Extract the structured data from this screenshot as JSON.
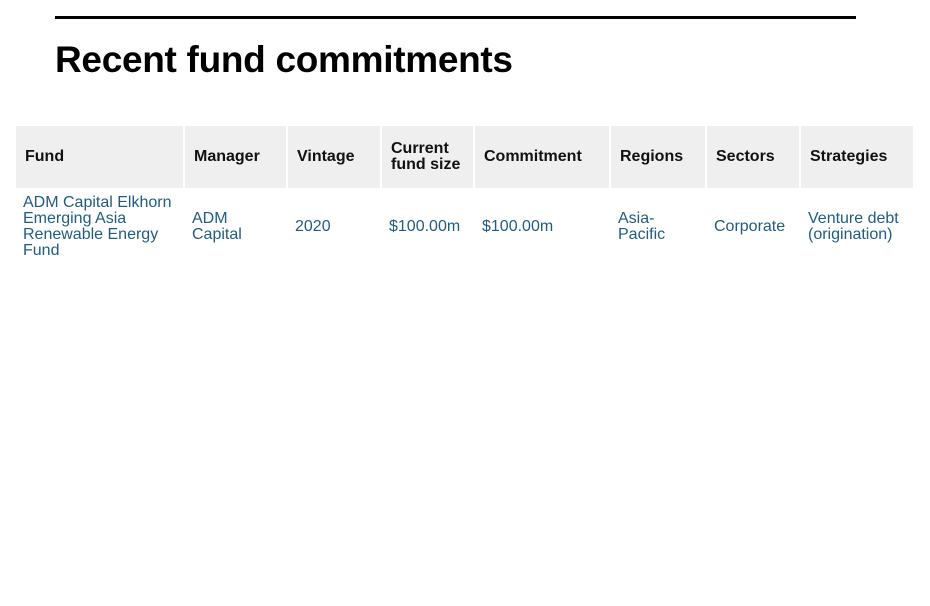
{
  "page": {
    "title": "Recent fund commitments"
  },
  "table": {
    "headers": {
      "fund": "Fund",
      "manager": "Manager",
      "vintage": "Vintage",
      "size": "Current fund size",
      "commitment": "Commitment",
      "regions": "Regions",
      "sectors": "Sectors",
      "strategies": "Strategies"
    },
    "rows": [
      {
        "fund": "ADM Capital Elkhorn Emerging Asia Renewable Energy Fund",
        "manager": "ADM Capital",
        "vintage": "2020",
        "size": "$100.00m",
        "commitment": "$100.00m",
        "regions": "Asia-Pacific",
        "sectors": "Corporate",
        "strategies": "Venture debt (origination)"
      }
    ]
  },
  "colors": {
    "link": "#1f5b82",
    "header_bg": "#efefef",
    "rule": "#000000"
  }
}
